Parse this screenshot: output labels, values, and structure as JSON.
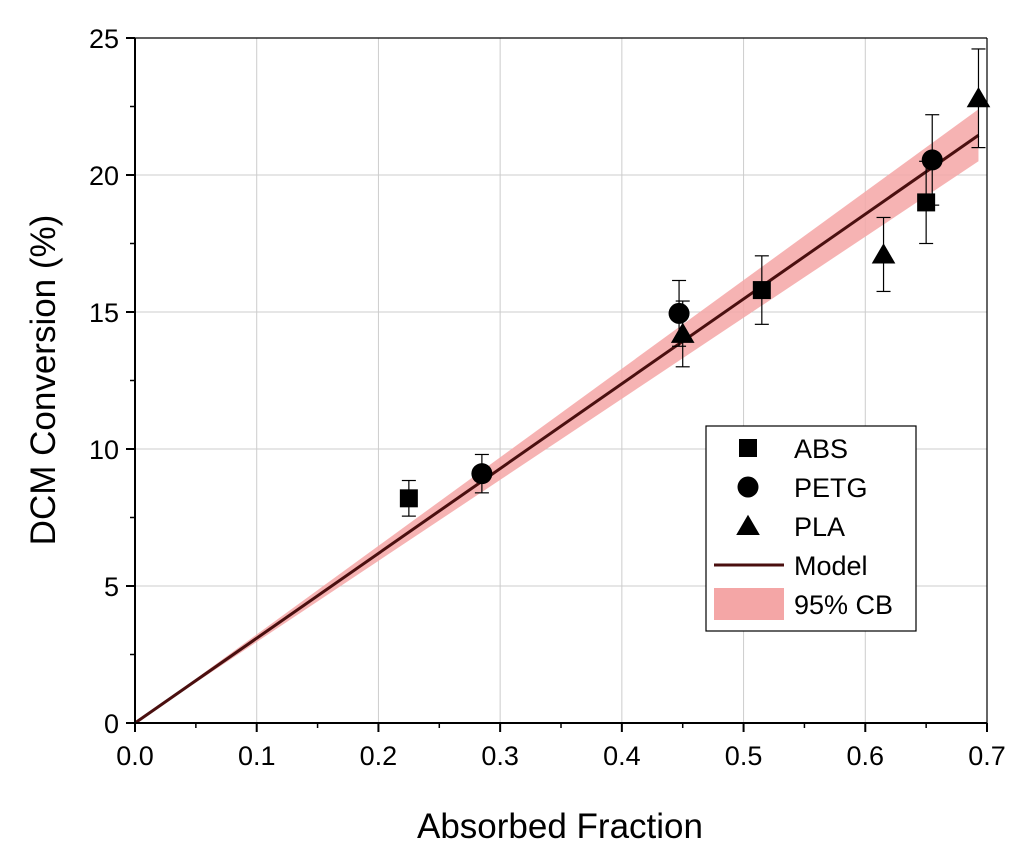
{
  "chart_data": {
    "type": "scatter",
    "title": "",
    "xlabel": "Absorbed Fraction",
    "ylabel": "DCM Conversion (%)",
    "xlim": [
      0.0,
      0.7
    ],
    "ylim": [
      0,
      25
    ],
    "xticks": [
      0.0,
      0.1,
      0.2,
      0.3,
      0.4,
      0.5,
      0.6,
      0.7
    ],
    "xtick_labels": [
      "0.0",
      "0.1",
      "0.2",
      "0.3",
      "0.4",
      "0.5",
      "0.6",
      "0.7"
    ],
    "yticks": [
      0,
      5,
      10,
      15,
      20,
      25
    ],
    "ytick_labels": [
      "0",
      "5",
      "10",
      "15",
      "20",
      "25"
    ],
    "grid": true,
    "legend_position": "right",
    "series": [
      {
        "name": "ABS",
        "marker": "square",
        "color": "#000000",
        "points": [
          {
            "x": 0.225,
            "y": 8.2,
            "err": 0.65
          },
          {
            "x": 0.515,
            "y": 15.8,
            "err": 1.25
          },
          {
            "x": 0.65,
            "y": 19.0,
            "err": 1.5
          }
        ]
      },
      {
        "name": "PETG",
        "marker": "circle",
        "color": "#000000",
        "points": [
          {
            "x": 0.285,
            "y": 9.1,
            "err": 0.7
          },
          {
            "x": 0.447,
            "y": 14.95,
            "err": 1.2
          },
          {
            "x": 0.655,
            "y": 20.55,
            "err": 1.65
          }
        ]
      },
      {
        "name": "PLA",
        "marker": "triangle",
        "color": "#000000",
        "points": [
          {
            "x": 0.45,
            "y": 14.2,
            "err": 1.2
          },
          {
            "x": 0.615,
            "y": 17.1,
            "err": 1.35
          },
          {
            "x": 0.693,
            "y": 22.8,
            "err": 1.8
          }
        ]
      },
      {
        "name": "Model",
        "type": "line",
        "color": "#4a0f0f",
        "x": [
          0.0,
          0.693
        ],
        "y": [
          0.0,
          21.45
        ]
      },
      {
        "name": "95% CB",
        "type": "band",
        "color": "#f4a6a6",
        "x": [
          0.0,
          0.693
        ],
        "lower": [
          0.0,
          20.5
        ],
        "upper": [
          0.0,
          22.4
        ]
      }
    ],
    "legend": [
      {
        "label": "ABS",
        "symbol": "square"
      },
      {
        "label": "PETG",
        "symbol": "circle"
      },
      {
        "label": "PLA",
        "symbol": "triangle"
      },
      {
        "label": "Model",
        "symbol": "line"
      },
      {
        "label": "95% CB",
        "symbol": "band"
      }
    ]
  }
}
